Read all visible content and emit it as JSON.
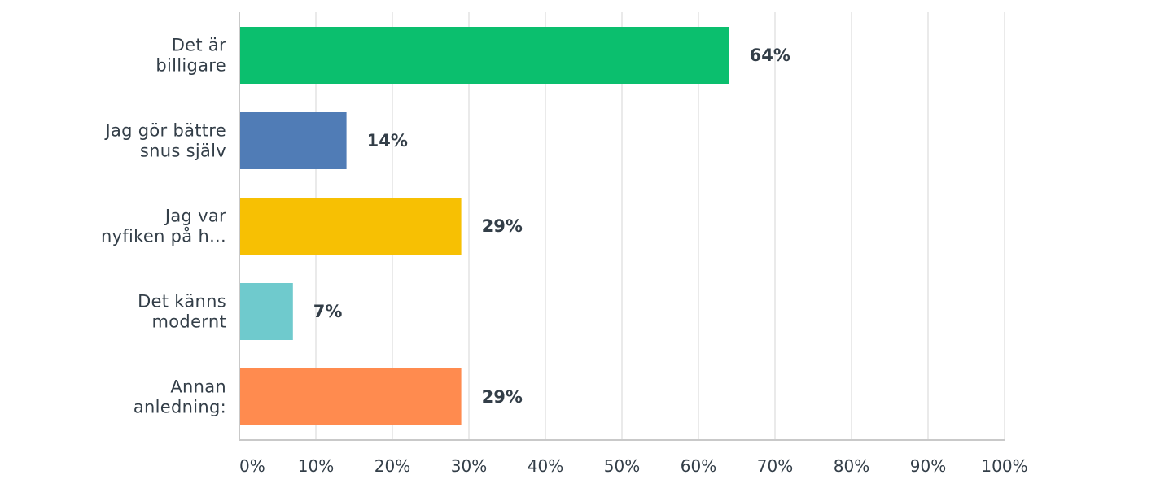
{
  "chart_data": {
    "type": "bar",
    "orientation": "horizontal",
    "title": "",
    "xlabel": "",
    "ylabel": "",
    "xlim": [
      0,
      100
    ],
    "grid": true,
    "categories": [
      [
        "Det är",
        "billigare"
      ],
      [
        "Jag gör bättre",
        "snus själv"
      ],
      [
        "Jag var",
        "nyfiken på h..."
      ],
      [
        "Det känns",
        "modernt"
      ],
      [
        "Annan",
        "anledning:"
      ]
    ],
    "values": [
      64,
      14,
      29,
      7,
      29
    ],
    "value_labels": [
      "64%",
      "14%",
      "29%",
      "7%",
      "29%"
    ],
    "colors": [
      "#0bbf6e",
      "#507cb6",
      "#f7c003",
      "#6fcacd",
      "#ff8b4f"
    ],
    "tick_values": [
      0,
      10,
      20,
      30,
      40,
      50,
      60,
      70,
      80,
      90,
      100
    ],
    "tick_labels": [
      "0%",
      "10%",
      "20%",
      "30%",
      "40%",
      "50%",
      "60%",
      "70%",
      "80%",
      "90%",
      "100%"
    ]
  }
}
